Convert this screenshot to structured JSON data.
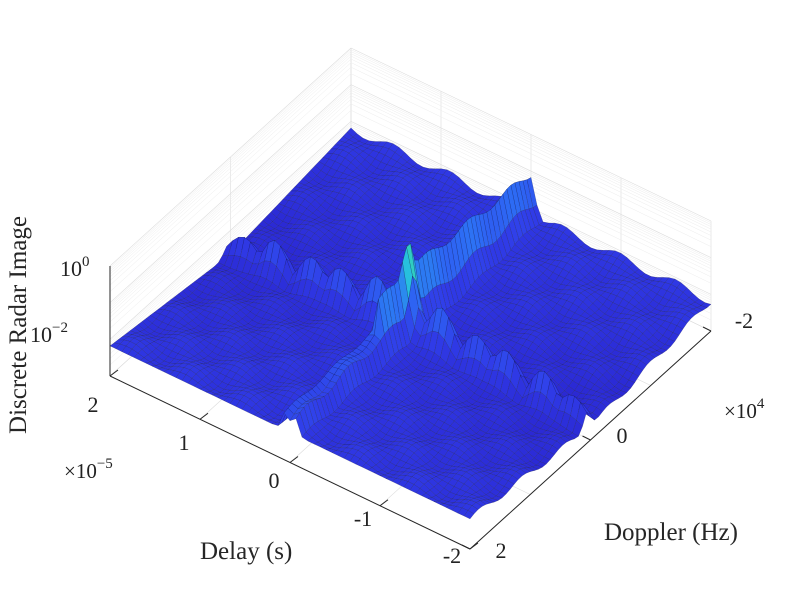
{
  "chart_data": {
    "type": "surface",
    "zlabel": "Discrete Radar Image",
    "xlabel": "Delay (s)",
    "ylabel": "Doppler (Hz)",
    "x_ticks": [
      "2",
      "1",
      "0",
      "-1",
      "-2"
    ],
    "x_exponent": {
      "base": "×10",
      "power": "−5"
    },
    "y_ticks": [
      "2",
      "0",
      "-2"
    ],
    "y_exponent": {
      "base": "×10",
      "power": "4"
    },
    "z_ticks": [
      {
        "base": "10",
        "power": "0"
      },
      {
        "base": "10",
        "power": "−2"
      }
    ],
    "xlim": [
      -2e-05,
      2e-05
    ],
    "ylim": [
      -20000.0,
      20000.0
    ],
    "zscale": "log",
    "zlim": [
      0.001,
      1
    ],
    "grid": true,
    "colormap": "parula (blue-dominant)",
    "colors": {
      "low": "#2a25d6",
      "mid": "#2f6ef0",
      "high": "#29d3c0",
      "peak": "#3ef07a"
    }
  }
}
